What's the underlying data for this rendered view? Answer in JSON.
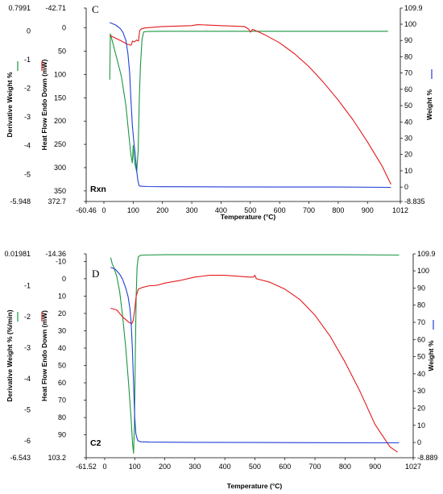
{
  "chart_data": [
    {
      "type": "line",
      "panel_label": "C",
      "sample_label": "Rxn",
      "xlabel": "Temperature (°C)",
      "xlim": [
        -60.46,
        1012
      ],
      "x_ticks": [
        "-60.46",
        "0",
        "100",
        "200",
        "300",
        "400",
        "500",
        "600",
        "700",
        "800",
        "900",
        "1012"
      ],
      "ylabel_left_outer": "Derivative Weight %",
      "ylim_left_outer": [
        -5.948,
        0.7991
      ],
      "left_outer_ticks": [
        "0.7991",
        "0",
        "-1",
        "-2",
        "-3",
        "-4",
        "-5",
        "-5.948"
      ],
      "ylabel_left_inner": "Heat Flow Endo Down (mW)",
      "ylim_left_inner": [
        372.7,
        -42.71
      ],
      "left_inner_ticks": [
        "-42.71",
        "0",
        "50",
        "100",
        "150",
        "200",
        "250",
        "300",
        "350",
        "372.7"
      ],
      "ylabel_right": "Weight %",
      "ylim_right": [
        -8.835,
        109.9
      ],
      "right_ticks": [
        "109.9",
        "100",
        "90",
        "80",
        "70",
        "60",
        "50",
        "40",
        "30",
        "20",
        "10",
        "0",
        "-8.835"
      ],
      "colors": {
        "derivative": "#1a9641",
        "heatflow": "#e31a1c",
        "weight": "#1f3fd6"
      },
      "series": [
        {
          "axis": "left_outer",
          "color": "#1a9641",
          "x": [
            20,
            22,
            30,
            45,
            60,
            75,
            85,
            92,
            97,
            100,
            103,
            107,
            112,
            117,
            121,
            125,
            130,
            136,
            145,
            200,
            400,
            600,
            800,
            970
          ],
          "y": [
            -1.7,
            -0.1,
            -0.4,
            -1.0,
            -1.6,
            -2.6,
            -3.6,
            -4.3,
            -4.6,
            -4.0,
            -4.4,
            -4.7,
            -4.9,
            -4.2,
            -2.3,
            -1.2,
            -0.3,
            -0.03,
            -0.02,
            -0.01,
            -0.01,
            -0.01,
            -0.01,
            -0.01
          ]
        },
        {
          "axis": "left_inner",
          "color": "#e31a1c",
          "x": [
            20,
            40,
            60,
            80,
            93,
            98,
            104,
            112,
            118,
            122,
            128,
            140,
            200,
            300,
            320,
            400,
            480,
            495,
            500,
            508,
            550,
            600,
            650,
            700,
            750,
            800,
            850,
            900,
            950,
            980
          ],
          "y": [
            16,
            22,
            28,
            35,
            37,
            28,
            30,
            26,
            28,
            6,
            2,
            0,
            -3,
            -5,
            -7,
            -5,
            -3,
            3,
            9,
            3,
            15,
            32,
            55,
            83,
            117,
            155,
            197,
            245,
            297,
            336
          ]
        },
        {
          "axis": "right",
          "color": "#1f3fd6",
          "x": [
            20,
            40,
            55,
            65,
            75,
            82,
            88,
            92,
            97,
            102,
            107,
            112,
            116,
            120,
            125,
            150,
            200,
            400,
            600,
            800,
            980
          ],
          "y": [
            101,
            99.5,
            97.5,
            95,
            90,
            82,
            70,
            55,
            38,
            28,
            20,
            10,
            4,
            0.9,
            0.5,
            0.3,
            0.2,
            0.1,
            0,
            0,
            -0.2
          ]
        }
      ]
    },
    {
      "type": "line",
      "panel_label": "D",
      "sample_label": "C2",
      "xlabel": "Temperature (°C)",
      "xlim": [
        -61.52,
        1027
      ],
      "x_ticks": [
        "-61.52",
        "0",
        "100",
        "200",
        "300",
        "400",
        "500",
        "600",
        "700",
        "800",
        "900",
        "1027"
      ],
      "ylabel_left_outer": "Derivative Weight % (%/min)",
      "ylim_left_outer": [
        -6.543,
        0.01981
      ],
      "left_outer_ticks": [
        "0.01981",
        "-1",
        "-2",
        "-3",
        "-4",
        "-5",
        "-6",
        "-6.543"
      ],
      "ylabel_left_inner": "Heat Flow Endo Down (mW)",
      "ylim_left_inner": [
        103.2,
        -14.36
      ],
      "left_inner_ticks": [
        "-14.36",
        "-10",
        "0",
        "10",
        "20",
        "30",
        "40",
        "50",
        "60",
        "70",
        "80",
        "90",
        "103.2"
      ],
      "ylabel_right": "Weight %",
      "ylim_right": [
        -8.889,
        109.9
      ],
      "right_ticks": [
        "109.9",
        "100",
        "90",
        "80",
        "70",
        "60",
        "50",
        "40",
        "30",
        "20",
        "10",
        "0",
        "-8.889"
      ],
      "colors": {
        "derivative": "#1a9641",
        "heatflow": "#e31a1c",
        "weight": "#1f3fd6"
      },
      "series": [
        {
          "axis": "left_outer",
          "color": "#1a9641",
          "x": [
            20,
            25,
            30,
            40,
            50,
            60,
            70,
            80,
            88,
            93,
            96,
            99,
            102,
            105,
            108,
            112,
            118,
            130,
            200,
            400,
            600,
            800,
            980
          ],
          "y": [
            -0.1,
            -0.3,
            -0.4,
            -0.7,
            -1.2,
            -2.0,
            -3.0,
            -4.2,
            -5.3,
            -6.1,
            -6.4,
            -5.5,
            -3.2,
            -1.3,
            -0.4,
            -0.08,
            -0.03,
            -0.02,
            -0.01,
            -0.01,
            -0.01,
            -0.01,
            -0.02
          ]
        },
        {
          "axis": "left_inner",
          "color": "#e31a1c",
          "x": [
            20,
            40,
            60,
            80,
            90,
            95,
            100,
            105,
            112,
            125,
            150,
            165,
            180,
            200,
            250,
            300,
            350,
            400,
            480,
            495,
            500,
            505,
            550,
            600,
            650,
            700,
            750,
            800,
            850,
            900,
            950,
            975
          ],
          "y": [
            17,
            18,
            22,
            25,
            26,
            24,
            18,
            10,
            6,
            5,
            4,
            4,
            3.5,
            2.5,
            1,
            -1,
            -2,
            -2,
            -1,
            -1,
            -2,
            0,
            2,
            6,
            12,
            21,
            33,
            48,
            65,
            84,
            97,
            100
          ]
        },
        {
          "axis": "right",
          "color": "#1f3fd6",
          "x": [
            20,
            35,
            50,
            60,
            70,
            78,
            84,
            88,
            92,
            96,
            100,
            104,
            110,
            120,
            150,
            300,
            500,
            700,
            900,
            980
          ],
          "y": [
            102,
            101,
            98,
            95,
            90,
            85,
            78,
            70,
            55,
            35,
            15,
            5,
            1,
            0.4,
            0.2,
            0.1,
            0,
            -0.1,
            -0.2,
            -0.2
          ]
        }
      ]
    }
  ]
}
